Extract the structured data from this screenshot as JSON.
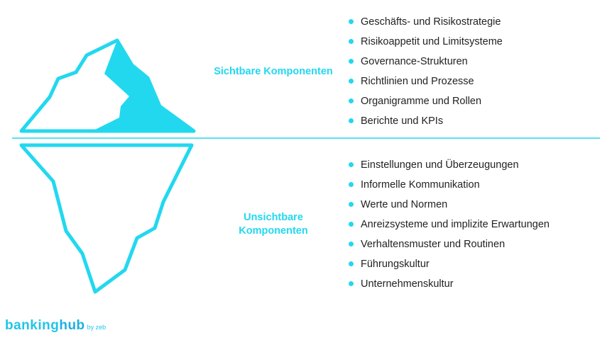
{
  "accent_color": "#22d8ef",
  "visible": {
    "label": "Sichtbare Komponenten",
    "items": [
      "Geschäfts- und Risikostrategie",
      "Risikoappetit und Limitsysteme",
      "Governance-Strukturen",
      "Richtlinien und Prozesse",
      "Organigramme und Rollen",
      "Berichte und KPIs"
    ]
  },
  "invisible": {
    "label_line1": "Unsichtbare",
    "label_line2": "Komponenten",
    "items": [
      "Einstellungen und Überzeugungen",
      "Informelle Kommunikation",
      "Werte und Normen",
      "Anreizsysteme und implizite Erwartungen",
      "Verhaltensmuster und Routinen",
      "Führungskultur",
      "Unternehmenskultur"
    ]
  },
  "logo": {
    "part1": "banking",
    "part2": "hub",
    "suffix": "by zeb"
  }
}
